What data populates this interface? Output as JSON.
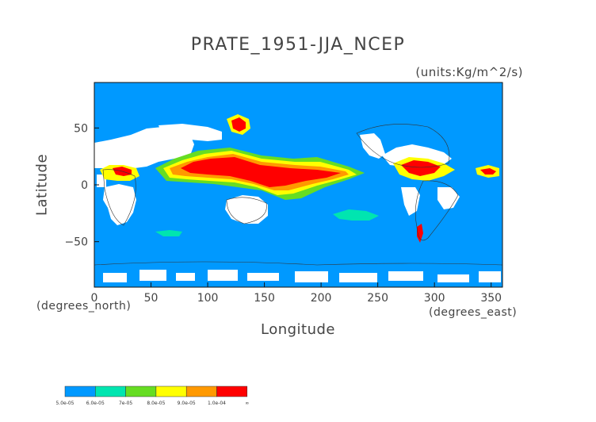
{
  "title": "PRATE_1951-JJA_NCEP",
  "units": "(units:Kg/m^2/s)",
  "chart_data": {
    "type": "heatmap",
    "title": "PRATE_1951-JJA_NCEP",
    "units": "(units:Kg/m^2/s)",
    "xlabel": "Longitude",
    "ylabel": "Latitude",
    "x_unit_label": "(degrees_east)",
    "y_unit_label": "(degrees_north)",
    "xlim": [
      0,
      360
    ],
    "ylim": [
      -90,
      90
    ],
    "x_ticks": [
      0,
      50,
      100,
      150,
      200,
      250,
      300,
      350
    ],
    "y_ticks": [
      -50,
      0,
      50
    ],
    "legend": {
      "placement": "bottom-left",
      "labels": [
        "5.0e-05",
        "6.0e-05",
        "7e-05",
        "8.0e-05",
        "9.0e-05",
        "1.0e-04",
        "∞"
      ],
      "colors": [
        "#0099ff",
        "#00e5b0",
        "#66dd22",
        "#ffff00",
        "#ff9900",
        "#ff0000"
      ]
    },
    "regions": [
      {
        "level": 6,
        "lon": [
          70,
          100
        ],
        "lat": [
          5,
          25
        ]
      },
      {
        "level": 6,
        "lon": [
          100,
          180
        ],
        "lat": [
          0,
          20
        ]
      },
      {
        "level": 6,
        "lon": [
          180,
          220
        ],
        "lat": [
          5,
          12
        ]
      },
      {
        "level": 6,
        "lon": [
          270,
          300
        ],
        "lat": [
          5,
          20
        ]
      },
      {
        "level": 6,
        "lon": [
          120,
          135
        ],
        "lat": [
          35,
          50
        ]
      },
      {
        "level": 6,
        "lon": [
          15,
          35
        ],
        "lat": [
          5,
          15
        ]
      },
      {
        "level": 6,
        "lon": [
          345,
          360
        ],
        "lat": [
          5,
          12
        ]
      },
      {
        "level": 6,
        "lon": [
          280,
          290
        ],
        "lat": [
          -40,
          -30
        ]
      },
      {
        "level": 2,
        "lon": [
          210,
          260
        ],
        "lat": [
          -30,
          -15
        ]
      },
      {
        "level": 2,
        "lon": [
          50,
          80
        ],
        "lat": [
          -45,
          -40
        ]
      }
    ]
  }
}
